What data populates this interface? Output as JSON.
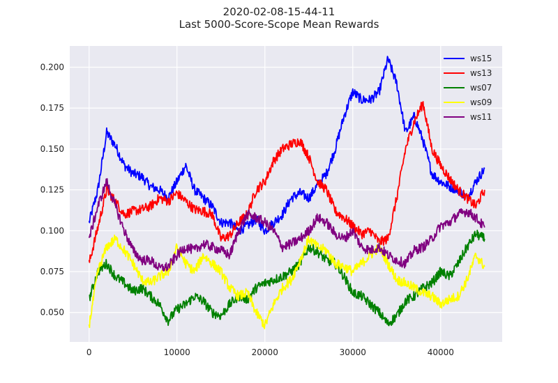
{
  "chart_data": {
    "type": "line",
    "title": "2020-02-08-15-44-11",
    "subtitle": "Last 5000-Score-Scope Mean Rewards",
    "xlim": [
      -2200,
      47000
    ],
    "ylim": [
      0.032,
      0.213
    ],
    "x_ticks": [
      0,
      10000,
      20000,
      30000,
      40000
    ],
    "y_ticks": [
      0.05,
      0.075,
      0.1,
      0.125,
      0.15,
      0.175,
      0.2
    ],
    "x_tick_labels": [
      "0",
      "10000",
      "20000",
      "30000",
      "40000"
    ],
    "y_tick_labels": [
      "0.050",
      "0.075",
      "0.100",
      "0.125",
      "0.150",
      "0.175",
      "0.200"
    ],
    "background": "#e9e9f1",
    "grid": true,
    "legend_position": "top-right",
    "x": [
      0,
      1000,
      2000,
      3000,
      4000,
      5000,
      6000,
      7000,
      8000,
      9000,
      10000,
      11000,
      12000,
      13000,
      14000,
      15000,
      16000,
      17000,
      18000,
      19000,
      20000,
      21000,
      22000,
      23000,
      24000,
      25000,
      26000,
      27000,
      28000,
      29000,
      30000,
      31000,
      32000,
      33000,
      34000,
      35000,
      36000,
      37000,
      38000,
      39000,
      40000,
      41000,
      42000,
      43000,
      44000,
      45000
    ],
    "series": [
      {
        "name": "ws15",
        "color": "#0000ff",
        "values": [
          0.105,
          0.125,
          0.16,
          0.152,
          0.14,
          0.135,
          0.133,
          0.127,
          0.125,
          0.12,
          0.13,
          0.14,
          0.125,
          0.12,
          0.115,
          0.105,
          0.105,
          0.1,
          0.103,
          0.107,
          0.1,
          0.105,
          0.11,
          0.12,
          0.123,
          0.12,
          0.128,
          0.135,
          0.15,
          0.17,
          0.185,
          0.18,
          0.18,
          0.185,
          0.205,
          0.19,
          0.16,
          0.17,
          0.155,
          0.135,
          0.13,
          0.127,
          0.125,
          0.12,
          0.13,
          0.138
        ]
      },
      {
        "name": "ws13",
        "color": "#ff0000",
        "values": [
          0.08,
          0.102,
          0.125,
          0.118,
          0.11,
          0.112,
          0.113,
          0.115,
          0.12,
          0.118,
          0.123,
          0.118,
          0.113,
          0.112,
          0.11,
          0.095,
          0.097,
          0.105,
          0.11,
          0.125,
          0.13,
          0.143,
          0.15,
          0.153,
          0.155,
          0.145,
          0.13,
          0.125,
          0.112,
          0.108,
          0.103,
          0.098,
          0.1,
          0.093,
          0.095,
          0.12,
          0.15,
          0.167,
          0.178,
          0.15,
          0.14,
          0.132,
          0.125,
          0.12,
          0.115,
          0.125
        ]
      },
      {
        "name": "ws07",
        "color": "#008000",
        "values": [
          0.058,
          0.075,
          0.08,
          0.072,
          0.068,
          0.063,
          0.065,
          0.06,
          0.055,
          0.045,
          0.052,
          0.055,
          0.06,
          0.057,
          0.05,
          0.048,
          0.055,
          0.06,
          0.058,
          0.065,
          0.068,
          0.07,
          0.072,
          0.075,
          0.08,
          0.09,
          0.087,
          0.082,
          0.08,
          0.072,
          0.062,
          0.06,
          0.055,
          0.05,
          0.043,
          0.048,
          0.057,
          0.06,
          0.065,
          0.068,
          0.075,
          0.072,
          0.08,
          0.09,
          0.098,
          0.095
        ]
      },
      {
        "name": "ws09",
        "color": "#ffff00",
        "values": [
          0.042,
          0.075,
          0.09,
          0.095,
          0.088,
          0.08,
          0.07,
          0.068,
          0.072,
          0.075,
          0.09,
          0.08,
          0.075,
          0.085,
          0.08,
          0.075,
          0.065,
          0.06,
          0.062,
          0.05,
          0.042,
          0.055,
          0.065,
          0.07,
          0.082,
          0.095,
          0.09,
          0.088,
          0.08,
          0.078,
          0.075,
          0.08,
          0.085,
          0.09,
          0.08,
          0.07,
          0.068,
          0.065,
          0.062,
          0.06,
          0.055,
          0.058,
          0.06,
          0.07,
          0.085,
          0.078
        ]
      },
      {
        "name": "ws11",
        "color": "#800080",
        "values": [
          0.095,
          0.115,
          0.13,
          0.115,
          0.1,
          0.088,
          0.082,
          0.082,
          0.077,
          0.078,
          0.085,
          0.09,
          0.088,
          0.092,
          0.09,
          0.088,
          0.085,
          0.1,
          0.11,
          0.108,
          0.105,
          0.1,
          0.09,
          0.092,
          0.095,
          0.1,
          0.108,
          0.105,
          0.098,
          0.095,
          0.1,
          0.09,
          0.088,
          0.09,
          0.085,
          0.082,
          0.08,
          0.088,
          0.09,
          0.095,
          0.103,
          0.105,
          0.11,
          0.112,
          0.108,
          0.102
        ]
      }
    ]
  }
}
